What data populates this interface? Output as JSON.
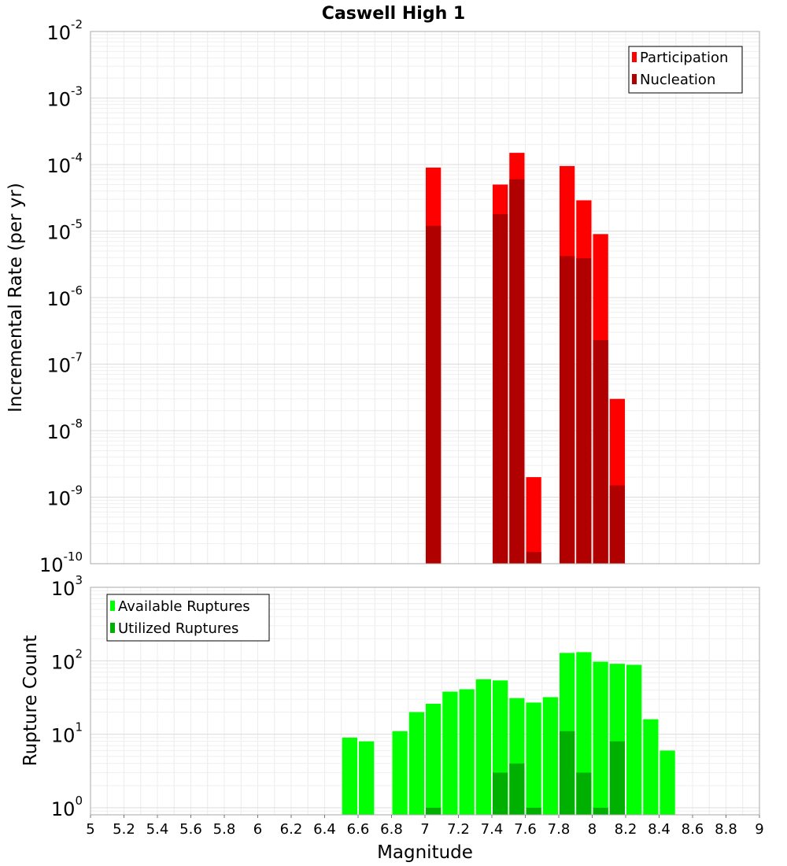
{
  "title": "Caswell High 1",
  "colors": {
    "participation": "#ff0000",
    "nucleation": "#b00000",
    "available": "#00ff00",
    "utilized": "#00b000"
  },
  "chart_data": [
    {
      "type": "bar",
      "title": "Caswell High 1",
      "xlabel": "Magnitude",
      "ylabel": "Incremental Rate (per yr)",
      "yscale": "log",
      "ylim": [
        1e-10,
        0.01
      ],
      "xlim": [
        5,
        9
      ],
      "grid": true,
      "legend_position": "top-right",
      "x": [
        7.05,
        7.45,
        7.55,
        7.65,
        7.85,
        7.95,
        8.05,
        8.15
      ],
      "series": [
        {
          "name": "Participation",
          "values": [
            9e-05,
            5e-05,
            0.00015,
            2e-09,
            9.5e-05,
            2.9e-05,
            9e-06,
            3e-08
          ]
        },
        {
          "name": "Nucleation",
          "values": [
            1.2e-05,
            1.8e-05,
            6e-05,
            1.5e-10,
            4.2e-06,
            3.9e-06,
            2.3e-07,
            1.5e-09
          ]
        }
      ]
    },
    {
      "type": "bar",
      "xlabel": "Magnitude",
      "ylabel": "Rupture Count",
      "yscale": "log",
      "ylim": [
        0.8,
        1000
      ],
      "xlim": [
        5,
        9
      ],
      "grid": true,
      "legend_position": "top-left",
      "x": [
        6.55,
        6.65,
        6.85,
        6.95,
        7.05,
        7.15,
        7.25,
        7.35,
        7.45,
        7.55,
        7.65,
        7.75,
        7.85,
        7.95,
        8.05,
        8.15,
        8.25,
        8.35,
        8.45
      ],
      "series": [
        {
          "name": "Available Ruptures",
          "values": [
            9,
            8,
            11,
            20,
            26,
            38,
            41,
            56,
            54,
            31,
            27,
            32,
            128,
            131,
            97,
            91,
            88,
            16,
            6
          ]
        },
        {
          "name": "Utilized Ruptures",
          "values": [
            0,
            0,
            0,
            0,
            1,
            0,
            0,
            0,
            3,
            4,
            1,
            0,
            11,
            3,
            1,
            8,
            0,
            0,
            0
          ]
        }
      ]
    }
  ],
  "axes": {
    "xticks": [
      "5",
      "5.2",
      "5.4",
      "5.6",
      "5.8",
      "6",
      "6.2",
      "6.4",
      "6.6",
      "6.8",
      "7",
      "7.2",
      "7.4",
      "7.6",
      "7.8",
      "8",
      "8.2",
      "8.4",
      "8.6",
      "8.8",
      "9"
    ],
    "top_ytick_exponents": [
      "-2",
      "-3",
      "-4",
      "-5",
      "-6",
      "-7",
      "-8",
      "-9",
      "-10"
    ],
    "bottom_ytick_exponents": [
      "3",
      "2",
      "1",
      "0"
    ],
    "ytick_base": "10"
  }
}
